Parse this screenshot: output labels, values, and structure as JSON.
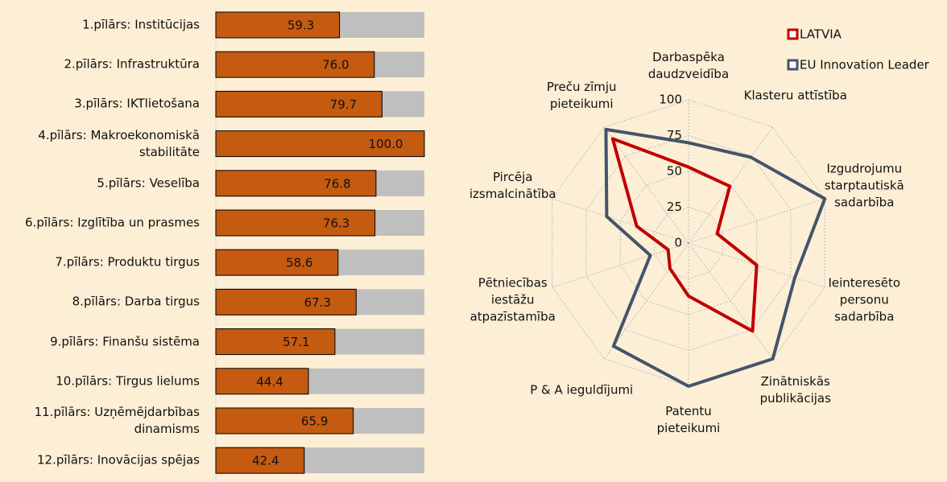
{
  "chart_data": [
    {
      "type": "bar",
      "categories": [
        "1.pīlārs: Institūcijas",
        "2.pīlārs: Infrastruktūra",
        "3.pīlārs: IKTlietošana",
        "4.pīlārs: Makroekonomiskā stabilitāte",
        "5.pīlārs: Veselība",
        "6.pīlārs: Izglītība un prasmes",
        "7.pīlārs: Produktu tirgus",
        "8.pīlārs: Darba tirgus",
        "9.pīlārs: Finanšu sistēma",
        "10.pīlārs: Tirgus lielums",
        "11.pīlārs: Uzņēmējdarbības dinamisms",
        "12.pīlārs: Inovācijas spējas"
      ],
      "values": [
        59.3,
        76.0,
        79.7,
        100.0,
        76.8,
        76.3,
        58.6,
        67.3,
        57.1,
        44.4,
        65.9,
        42.4
      ],
      "value_labels": [
        "59.3",
        "76.0",
        "79.7",
        "100.0",
        "76.8",
        "76.3",
        "58.6",
        "67.3",
        "57.1",
        "44.4",
        "65.9",
        "42.4"
      ],
      "xlim": [
        0,
        100
      ],
      "color": "#c55a11",
      "background_color": "#bfbfbf"
    },
    {
      "type": "radar",
      "categories": [
        "Darbaspēka daudzveidība",
        "Klasteru attīstība",
        "Izgudrojumu starptautiskā sadarbība",
        "Ieinteresēto personu sadarbība",
        "Zinātniskās publikācijas",
        "Patentu pieteikumi",
        "P & A ieguldījumi",
        "Pētniecības iestāžu atpazīstamība",
        "Pircēja izsmalcinātība",
        "Preču zīmju pieteikumi"
      ],
      "series": [
        {
          "name": "LATVIA",
          "color": "#c00000",
          "values": [
            53,
            49,
            21,
            50,
            76,
            37,
            22,
            15,
            38,
            90
          ]
        },
        {
          "name": "EU Innovation Leader",
          "color": "#44546a",
          "values": [
            70,
            74,
            100,
            78,
            100,
            100,
            89,
            28,
            60,
            98
          ]
        }
      ],
      "ylim": [
        0,
        100
      ],
      "yticks": [
        0,
        25,
        50,
        75,
        100
      ],
      "grid": true,
      "legend": "top-right"
    }
  ]
}
